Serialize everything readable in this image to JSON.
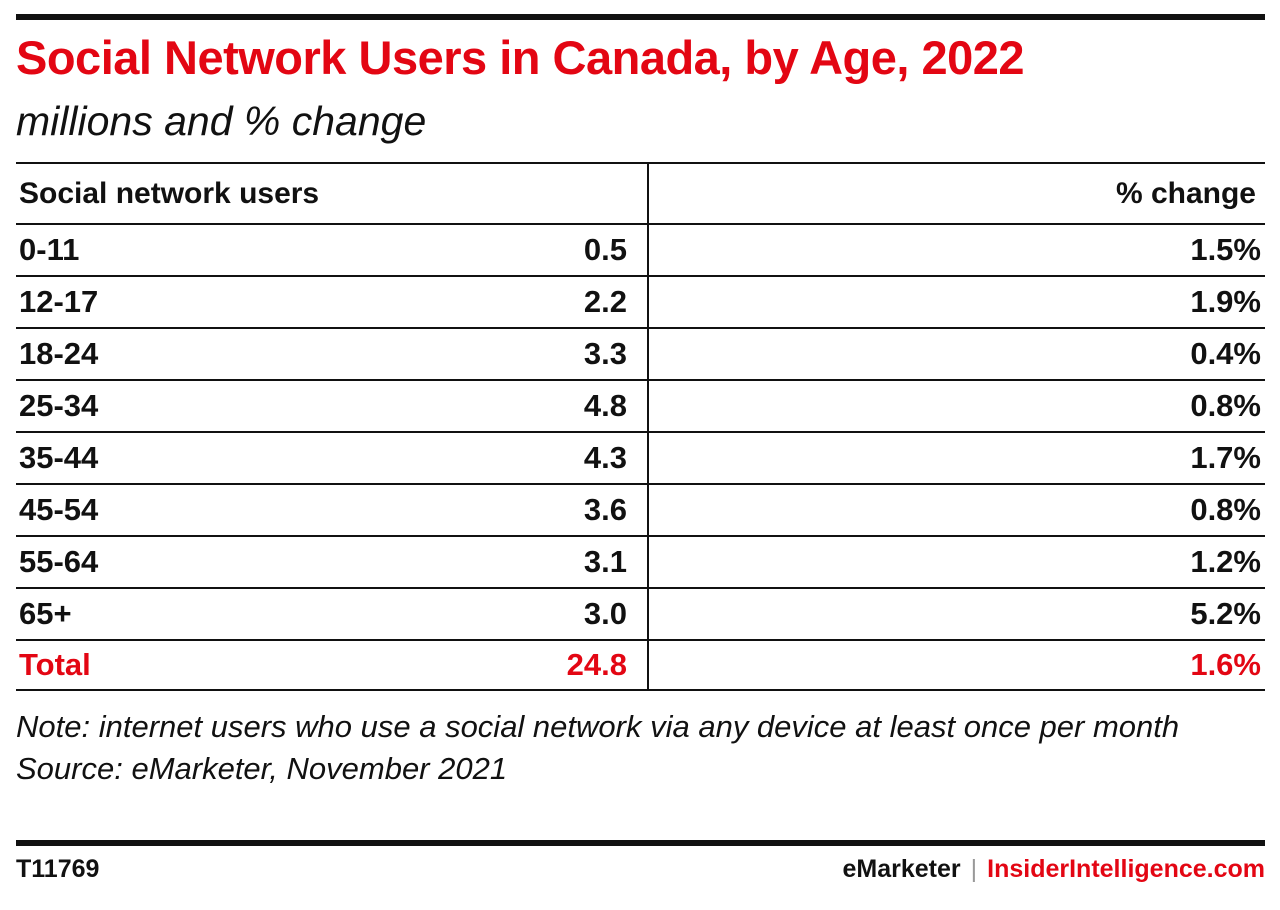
{
  "title": "Social Network Users in Canada, by Age, 2022",
  "subtitle": "millions and % change",
  "colors": {
    "accent": "#e30613",
    "text": "#111111",
    "rule": "#111111"
  },
  "table": {
    "header_left": "Social network users",
    "header_right": "% change"
  },
  "chart_data": {
    "type": "table",
    "title": "Social Network Users in Canada, by Age, 2022",
    "subtitle": "millions and % change",
    "columns": [
      "Social network users",
      "% change"
    ],
    "rows": [
      {
        "label": "0-11",
        "value": "0.5",
        "change": "1.5%"
      },
      {
        "label": "12-17",
        "value": "2.2",
        "change": "1.9%"
      },
      {
        "label": "18-24",
        "value": "3.3",
        "change": "0.4%"
      },
      {
        "label": "25-34",
        "value": "4.8",
        "change": "0.8%"
      },
      {
        "label": "35-44",
        "value": "4.3",
        "change": "1.7%"
      },
      {
        "label": "45-54",
        "value": "3.6",
        "change": "0.8%"
      },
      {
        "label": "55-64",
        "value": "3.1",
        "change": "1.2%"
      },
      {
        "label": "65+",
        "value": "3.0",
        "change": "5.2%"
      }
    ],
    "total": {
      "label": "Total",
      "value": "24.8",
      "change": "1.6%"
    }
  },
  "note": "Note: internet users who use a social network via any device at least once per month",
  "source": "Source: eMarketer, November 2021",
  "footer": {
    "id": "T11769",
    "brand_left": "eMarketer",
    "separator": "|",
    "brand_right": "InsiderIntelligence.com"
  }
}
